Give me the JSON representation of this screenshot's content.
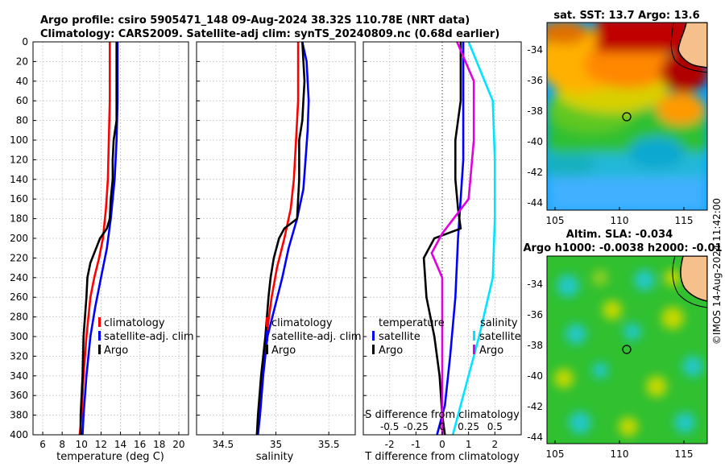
{
  "header": {
    "line1": "Argo profile: csiro 5905471_148 09-Aug-2024 38.32S 110.78E (NRT data)",
    "line2": "Climatology: CARS2009. Satellite-adj clim: synTS_20240809.nc (0.68d earlier)"
  },
  "watermark": "©IMOS 14-Aug-2024 11:42:00",
  "colors": {
    "climatology": "#ff0000",
    "satellite": "#0000ff",
    "argo": "#000000",
    "sat_salinity": "#00e5ff",
    "argo_salinity": "#e000e0"
  },
  "chart_data": [
    {
      "id": "temperature",
      "type": "line",
      "xlabel": "temperature (deg C)",
      "ylabel": "",
      "xlim": [
        5,
        21
      ],
      "ylim": [
        400,
        0
      ],
      "xticks": [
        6,
        8,
        10,
        12,
        14,
        16,
        18,
        20
      ],
      "yticks": [
        0,
        20,
        40,
        60,
        80,
        100,
        120,
        140,
        160,
        180,
        200,
        220,
        240,
        260,
        280,
        300,
        320,
        340,
        360,
        380,
        400
      ],
      "legend": [
        "climatology",
        "satellite-adj. clim",
        "Argo"
      ],
      "series": [
        {
          "name": "climatology",
          "color": "#ff0000",
          "points": [
            [
              12.9,
              0
            ],
            [
              12.9,
              20
            ],
            [
              12.9,
              60
            ],
            [
              12.8,
              100
            ],
            [
              12.7,
              140
            ],
            [
              12.5,
              170
            ],
            [
              12.2,
              200
            ],
            [
              11.8,
              220
            ],
            [
              11.3,
              240
            ],
            [
              10.9,
              260
            ],
            [
              10.5,
              300
            ],
            [
              10.2,
              340
            ],
            [
              10.0,
              380
            ],
            [
              9.8,
              400
            ]
          ]
        },
        {
          "name": "satellite-adj. clim",
          "color": "#0000ff",
          "points": [
            [
              13.7,
              0
            ],
            [
              13.7,
              20
            ],
            [
              13.7,
              60
            ],
            [
              13.6,
              100
            ],
            [
              13.4,
              140
            ],
            [
              13.0,
              180
            ],
            [
              12.6,
              210
            ],
            [
              12.0,
              240
            ],
            [
              11.4,
              270
            ],
            [
              10.9,
              300
            ],
            [
              10.5,
              340
            ],
            [
              10.2,
              380
            ],
            [
              10.1,
              400
            ]
          ]
        },
        {
          "name": "Argo",
          "color": "#000000",
          "points": [
            [
              13.6,
              0
            ],
            [
              13.6,
              40
            ],
            [
              13.6,
              80
            ],
            [
              13.3,
              100
            ],
            [
              13.2,
              120
            ],
            [
              13.2,
              140
            ],
            [
              13.0,
              160
            ],
            [
              12.9,
              180
            ],
            [
              12.6,
              190
            ],
            [
              11.9,
              200
            ],
            [
              11.5,
              210
            ],
            [
              10.9,
              225
            ],
            [
              10.6,
              240
            ],
            [
              10.5,
              260
            ],
            [
              10.2,
              300
            ],
            [
              10.1,
              340
            ],
            [
              9.9,
              380
            ],
            [
              9.9,
              400
            ]
          ]
        }
      ]
    },
    {
      "id": "salinity",
      "type": "line",
      "xlabel": "salinity",
      "ylabel": "",
      "xlim": [
        34.25,
        35.75
      ],
      "ylim": [
        400,
        0
      ],
      "xticks": [
        34.5,
        35,
        35.5
      ],
      "legend": [
        "climatology",
        "satellite-adj. clim",
        "Argo"
      ],
      "series": [
        {
          "name": "climatology",
          "color": "#ff0000",
          "points": [
            [
              35.21,
              0
            ],
            [
              35.21,
              20
            ],
            [
              35.21,
              60
            ],
            [
              35.19,
              100
            ],
            [
              35.17,
              140
            ],
            [
              35.14,
              170
            ],
            [
              35.08,
              200
            ],
            [
              35.01,
              230
            ],
            [
              34.96,
              260
            ],
            [
              34.91,
              300
            ],
            [
              34.87,
              340
            ],
            [
              34.84,
              380
            ],
            [
              34.82,
              400
            ]
          ]
        },
        {
          "name": "satellite-adj. clim",
          "color": "#0000ff",
          "points": [
            [
              35.25,
              0
            ],
            [
              35.29,
              20
            ],
            [
              35.31,
              60
            ],
            [
              35.3,
              90
            ],
            [
              35.28,
              120
            ],
            [
              35.26,
              150
            ],
            [
              35.2,
              180
            ],
            [
              35.12,
              210
            ],
            [
              35.06,
              240
            ],
            [
              34.99,
              270
            ],
            [
              34.92,
              300
            ],
            [
              34.88,
              340
            ],
            [
              34.85,
              380
            ],
            [
              34.83,
              400
            ]
          ]
        },
        {
          "name": "Argo",
          "color": "#000000",
          "points": [
            [
              35.25,
              0
            ],
            [
              35.27,
              40
            ],
            [
              35.26,
              60
            ],
            [
              35.25,
              80
            ],
            [
              35.22,
              100
            ],
            [
              35.22,
              140
            ],
            [
              35.21,
              160
            ],
            [
              35.2,
              180
            ],
            [
              35.08,
              190
            ],
            [
              35.03,
              200
            ],
            [
              34.98,
              220
            ],
            [
              34.95,
              240
            ],
            [
              34.93,
              260
            ],
            [
              34.9,
              300
            ],
            [
              34.86,
              340
            ],
            [
              34.83,
              380
            ],
            [
              34.82,
              400
            ]
          ]
        }
      ]
    },
    {
      "id": "differences",
      "type": "line",
      "xlabel": "T difference from climatology",
      "x2label": "S difference from climatology",
      "xlim": [
        -3,
        3
      ],
      "ylim": [
        400,
        0
      ],
      "xticks": [
        -2,
        -1,
        0,
        1,
        2
      ],
      "x2ticks": [
        -0.5,
        -0.25,
        0,
        0.25,
        0.5
      ],
      "legend_temperature_title": "temperature",
      "legend_salinity_title": "salinity",
      "legend": [
        "satellite",
        "Argo",
        "satellite",
        "Argo"
      ],
      "series": [
        {
          "name": "temperature satellite",
          "color": "#0000ff",
          "points": [
            [
              0.8,
              0
            ],
            [
              0.8,
              60
            ],
            [
              0.8,
              120
            ],
            [
              0.6,
              200
            ],
            [
              0.5,
              260
            ],
            [
              0.3,
              320
            ],
            [
              0.1,
              370
            ],
            [
              -0.2,
              400
            ]
          ]
        },
        {
          "name": "temperature Argo",
          "color": "#000000",
          "points": [
            [
              0.7,
              0
            ],
            [
              0.7,
              60
            ],
            [
              0.6,
              80
            ],
            [
              0.5,
              100
            ],
            [
              0.5,
              140
            ],
            [
              0.6,
              170
            ],
            [
              0.7,
              190
            ],
            [
              -0.3,
              200
            ],
            [
              -0.7,
              220
            ],
            [
              -0.6,
              260
            ],
            [
              -0.3,
              300
            ],
            [
              -0.1,
              340
            ],
            [
              0.0,
              380
            ],
            [
              0.1,
              400
            ]
          ]
        },
        {
          "name": "salinity satellite",
          "color": "#00e5ff",
          "points": [
            [
              0.25,
              0
            ],
            [
              0.48,
              60
            ],
            [
              0.5,
              120
            ],
            [
              0.5,
              180
            ],
            [
              0.48,
              240
            ],
            [
              0.35,
              300
            ],
            [
              0.2,
              360
            ],
            [
              0.1,
              400
            ]
          ]
        },
        {
          "name": "salinity Argo",
          "color": "#e000e0",
          "points": [
            [
              0.14,
              0
            ],
            [
              0.3,
              40
            ],
            [
              0.3,
              100
            ],
            [
              0.25,
              160
            ],
            [
              0.0,
              195
            ],
            [
              -0.1,
              215
            ],
            [
              0.0,
              240
            ],
            [
              0.0,
              280
            ],
            [
              0.0,
              320
            ],
            [
              0.0,
              360
            ],
            [
              0.0,
              400
            ]
          ]
        }
      ]
    }
  ],
  "maps": {
    "sst": {
      "title": "sat. SST: 13.7 Argo: 13.6",
      "xticks": [
        "105",
        "110",
        "115"
      ],
      "yticks": [
        "-34",
        "-36",
        "-38",
        "-40",
        "-42",
        "-44"
      ]
    },
    "sla": {
      "title1": "Altim. SLA: -0.034",
      "title2": "Argo h1000: -0.0038 h2000: -0.01",
      "xticks": [
        "105",
        "110",
        "115"
      ],
      "yticks": [
        "-34",
        "-36",
        "-38",
        "-40",
        "-42",
        "-44"
      ]
    }
  }
}
